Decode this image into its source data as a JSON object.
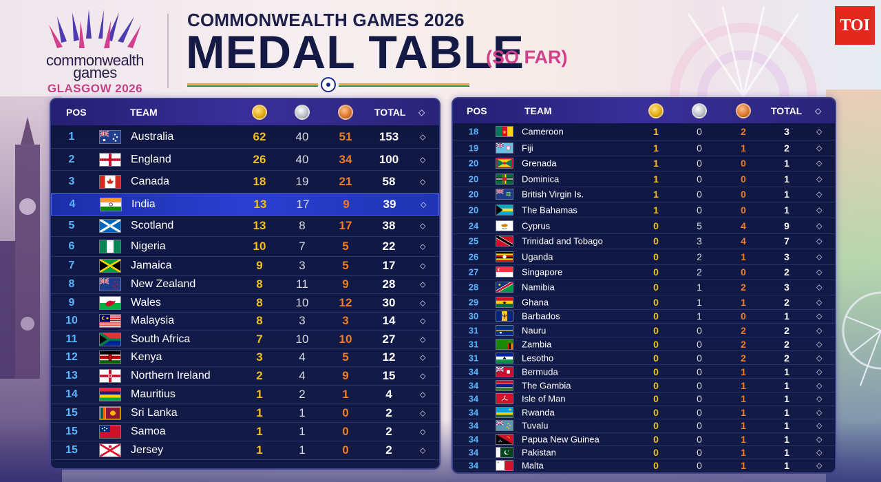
{
  "brand": {
    "logo_line1": "commonwealth",
    "logo_line2": "games",
    "logo_city": "GLASGOW 2026",
    "publisher": "TOI"
  },
  "header": {
    "super_title": "COMMONWEALTH GAMES 2026",
    "title": "MEDAL TABLE",
    "subtitle": "(SO FAR)"
  },
  "columns": {
    "pos": "POS",
    "team": "TEAM",
    "total": "TOTAL",
    "gold_icon": "gold-medal-icon",
    "silver_icon": "silver-medal-icon",
    "bronze_icon": "bronze-medal-icon",
    "sort_icon": "sort-icon"
  },
  "colors": {
    "gold": "#f2c01a",
    "silver": "#d8dbe2",
    "bronze": "#ef7d22",
    "highlight": "#2a3fd0",
    "pos": "#57b6ff"
  },
  "left_table": [
    {
      "pos": "1",
      "team": "Australia",
      "flag": "AU",
      "gold": "62",
      "silver": "40",
      "bronze": "51",
      "total": "153"
    },
    {
      "pos": "2",
      "team": "England",
      "flag": "ENG",
      "gold": "26",
      "silver": "40",
      "bronze": "34",
      "total": "100"
    },
    {
      "pos": "3",
      "team": "Canada",
      "flag": "CA",
      "gold": "18",
      "silver": "19",
      "bronze": "21",
      "total": "58"
    },
    {
      "pos": "4",
      "team": "India",
      "flag": "IN",
      "gold": "13",
      "silver": "17",
      "bronze": "9",
      "total": "39",
      "highlight": true
    },
    {
      "pos": "5",
      "team": "Scotland",
      "flag": "SCO",
      "gold": "13",
      "silver": "8",
      "bronze": "17",
      "total": "38"
    },
    {
      "pos": "6",
      "team": "Nigeria",
      "flag": "NG",
      "gold": "10",
      "silver": "7",
      "bronze": "5",
      "total": "22"
    },
    {
      "pos": "7",
      "team": "Jamaica",
      "flag": "JM",
      "gold": "9",
      "silver": "3",
      "bronze": "5",
      "total": "17"
    },
    {
      "pos": "8",
      "team": "New Zealand",
      "flag": "NZ",
      "gold": "8",
      "silver": "11",
      "bronze": "9",
      "total": "28"
    },
    {
      "pos": "9",
      "team": "Wales",
      "flag": "WAL",
      "gold": "8",
      "silver": "10",
      "bronze": "12",
      "total": "30"
    },
    {
      "pos": "10",
      "team": "Malaysia",
      "flag": "MY",
      "gold": "8",
      "silver": "3",
      "bronze": "3",
      "total": "14"
    },
    {
      "pos": "11",
      "team": "South Africa",
      "flag": "ZA",
      "gold": "7",
      "silver": "10",
      "bronze": "10",
      "total": "27"
    },
    {
      "pos": "12",
      "team": "Kenya",
      "flag": "KE",
      "gold": "3",
      "silver": "4",
      "bronze": "5",
      "total": "12"
    },
    {
      "pos": "13",
      "team": "Northern Ireland",
      "flag": "NIR",
      "gold": "2",
      "silver": "4",
      "bronze": "9",
      "total": "15"
    },
    {
      "pos": "14",
      "team": "Mauritius",
      "flag": "MU",
      "gold": "1",
      "silver": "2",
      "bronze": "1",
      "total": "4"
    },
    {
      "pos": "15",
      "team": "Sri Lanka",
      "flag": "LK",
      "gold": "1",
      "silver": "1",
      "bronze": "0",
      "total": "2"
    },
    {
      "pos": "15",
      "team": "Samoa",
      "flag": "WS",
      "gold": "1",
      "silver": "1",
      "bronze": "0",
      "total": "2"
    },
    {
      "pos": "15",
      "team": "Jersey",
      "flag": "JE",
      "gold": "1",
      "silver": "1",
      "bronze": "0",
      "total": "2"
    }
  ],
  "right_table": [
    {
      "pos": "18",
      "team": "Cameroon",
      "flag": "CM",
      "gold": "1",
      "silver": "0",
      "bronze": "2",
      "total": "3"
    },
    {
      "pos": "19",
      "team": "Fiji",
      "flag": "FJ",
      "gold": "1",
      "silver": "0",
      "bronze": "1",
      "total": "2"
    },
    {
      "pos": "20",
      "team": "Grenada",
      "flag": "GD",
      "gold": "1",
      "silver": "0",
      "bronze": "0",
      "total": "1"
    },
    {
      "pos": "20",
      "team": "Dominica",
      "flag": "DM",
      "gold": "1",
      "silver": "0",
      "bronze": "0",
      "total": "1"
    },
    {
      "pos": "20",
      "team": "British Virgin Is.",
      "flag": "VG",
      "gold": "1",
      "silver": "0",
      "bronze": "0",
      "total": "1"
    },
    {
      "pos": "20",
      "team": "The Bahamas",
      "flag": "BS",
      "gold": "1",
      "silver": "0",
      "bronze": "0",
      "total": "1"
    },
    {
      "pos": "24",
      "team": "Cyprus",
      "flag": "CY",
      "gold": "0",
      "silver": "5",
      "bronze": "4",
      "total": "9"
    },
    {
      "pos": "25",
      "team": "Trinidad and Tobago",
      "flag": "TT",
      "gold": "0",
      "silver": "3",
      "bronze": "4",
      "total": "7"
    },
    {
      "pos": "26",
      "team": "Uganda",
      "flag": "UG",
      "gold": "0",
      "silver": "2",
      "bronze": "1",
      "total": "3"
    },
    {
      "pos": "27",
      "team": "Singapore",
      "flag": "SG",
      "gold": "0",
      "silver": "2",
      "bronze": "0",
      "total": "2"
    },
    {
      "pos": "28",
      "team": "Namibia",
      "flag": "NA",
      "gold": "0",
      "silver": "1",
      "bronze": "2",
      "total": "3"
    },
    {
      "pos": "29",
      "team": "Ghana",
      "flag": "GH",
      "gold": "0",
      "silver": "1",
      "bronze": "1",
      "total": "2"
    },
    {
      "pos": "30",
      "team": "Barbados",
      "flag": "BB",
      "gold": "0",
      "silver": "1",
      "bronze": "0",
      "total": "1"
    },
    {
      "pos": "31",
      "team": "Nauru",
      "flag": "NR",
      "gold": "0",
      "silver": "0",
      "bronze": "2",
      "total": "2"
    },
    {
      "pos": "31",
      "team": "Zambia",
      "flag": "ZM",
      "gold": "0",
      "silver": "0",
      "bronze": "2",
      "total": "2"
    },
    {
      "pos": "31",
      "team": "Lesotho",
      "flag": "LS",
      "gold": "0",
      "silver": "0",
      "bronze": "2",
      "total": "2"
    },
    {
      "pos": "34",
      "team": "Bermuda",
      "flag": "BM",
      "gold": "0",
      "silver": "0",
      "bronze": "1",
      "total": "1"
    },
    {
      "pos": "34",
      "team": "The Gambia",
      "flag": "GM",
      "gold": "0",
      "silver": "0",
      "bronze": "1",
      "total": "1"
    },
    {
      "pos": "34",
      "team": "Isle of Man",
      "flag": "IM",
      "gold": "0",
      "silver": "0",
      "bronze": "1",
      "total": "1"
    },
    {
      "pos": "34",
      "team": "Rwanda",
      "flag": "RW",
      "gold": "0",
      "silver": "0",
      "bronze": "1",
      "total": "1"
    },
    {
      "pos": "34",
      "team": "Tuvalu",
      "flag": "TV",
      "gold": "0",
      "silver": "0",
      "bronze": "1",
      "total": "1"
    },
    {
      "pos": "34",
      "team": "Papua New Guinea",
      "flag": "PG",
      "gold": "0",
      "silver": "0",
      "bronze": "1",
      "total": "1"
    },
    {
      "pos": "34",
      "team": "Pakistan",
      "flag": "PK",
      "gold": "0",
      "silver": "0",
      "bronze": "1",
      "total": "1"
    },
    {
      "pos": "34",
      "team": "Malta",
      "flag": "MT",
      "gold": "0",
      "silver": "0",
      "bronze": "1",
      "total": "1"
    }
  ]
}
